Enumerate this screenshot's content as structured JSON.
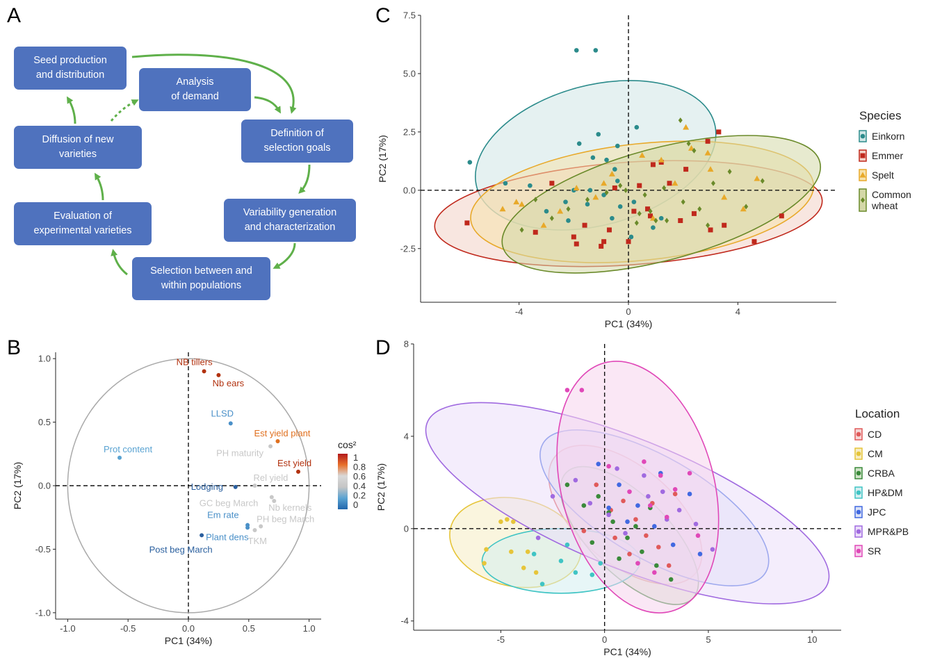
{
  "panels": {
    "A": "A",
    "B": "B",
    "C": "C",
    "D": "D"
  },
  "flowchart": {
    "boxes": [
      {
        "id": "seed",
        "label": "Seed production\nand distribution"
      },
      {
        "id": "demand",
        "label": "Analysis\nof demand"
      },
      {
        "id": "goals",
        "label": "Definition of\nselection goals"
      },
      {
        "id": "variability",
        "label": "Variability generation\nand characterization"
      },
      {
        "id": "selection",
        "label": "Selection between and\nwithin populations"
      },
      {
        "id": "evaluation",
        "label": "Evaluation of\nexperimental varieties"
      },
      {
        "id": "diffusion",
        "label": "Diffusion of new\nvarieties"
      }
    ],
    "arrow_color": "#5fb04a"
  },
  "chart_data": [
    {
      "panel": "B",
      "type": "scatter",
      "xlabel": "PC1 (34%)",
      "ylabel": "PC2 (17%)",
      "xlim": [
        -1.1,
        1.1
      ],
      "ylim": [
        -1.05,
        1.05
      ],
      "xticks": [
        "-1.0",
        "-0.5",
        "0.0",
        "0.5",
        "1.0"
      ],
      "yticks": [
        "-1.0",
        "-0.5",
        "0.0",
        "0.5",
        "1.0"
      ],
      "legend_title": "cos²",
      "legend_labels": [
        "1",
        "0.8",
        "0.6",
        "0.4",
        "0.2",
        "0"
      ],
      "legend_colors": [
        "#b2181b",
        "#e8702a",
        "#d9d9d9",
        "#c5c5c5",
        "#5aa3d2",
        "#2166ac"
      ],
      "variables": [
        {
          "label": "NB tillers",
          "x": 0.13,
          "y": 0.9,
          "color": "#b2320f"
        },
        {
          "label": "Nb ears",
          "x": 0.25,
          "y": 0.87,
          "color": "#b2320f"
        },
        {
          "label": "LLSD",
          "x": 0.35,
          "y": 0.49,
          "color": "#4a90c8"
        },
        {
          "label": "Est yield plant",
          "x": 0.74,
          "y": 0.35,
          "color": "#e0701f"
        },
        {
          "label": "PH maturity",
          "x": 0.68,
          "y": 0.31,
          "color": "#c8c8c8"
        },
        {
          "label": "Est yield",
          "x": 0.91,
          "y": 0.11,
          "color": "#b2320f"
        },
        {
          "label": "Prot content",
          "x": -0.57,
          "y": 0.22,
          "color": "#5aa3d2"
        },
        {
          "label": "Rel yield",
          "x": 0.55,
          "y": 0.0,
          "color": "#c8c8c8"
        },
        {
          "label": "Lodging",
          "x": 0.39,
          "y": -0.01,
          "color": "#2a5f9e"
        },
        {
          "label": "Nb kernels",
          "x": 0.71,
          "y": -0.12,
          "color": "#c8c8c8"
        },
        {
          "label": "GC beg March",
          "x": 0.69,
          "y": -0.09,
          "color": "#c8c8c8"
        },
        {
          "label": "Em rate",
          "x": 0.49,
          "y": -0.31,
          "color": "#4a90c8"
        },
        {
          "label": "PH beg March",
          "x": 0.6,
          "y": -0.32,
          "color": "#c8c8c8"
        },
        {
          "label": "Plant dens",
          "x": 0.49,
          "y": -0.33,
          "color": "#4a90c8"
        },
        {
          "label": "TKM",
          "x": 0.55,
          "y": -0.35,
          "color": "#c8c8c8"
        },
        {
          "label": "Post beg March",
          "x": 0.11,
          "y": -0.39,
          "color": "#2a5f9e"
        }
      ]
    },
    {
      "panel": "C",
      "type": "scatter",
      "xlabel": "PC1 (34%)",
      "ylabel": "PC2 (17%)",
      "xlim": [
        -7.6,
        7.6
      ],
      "ylim": [
        -4.8,
        7.5
      ],
      "xticks": [
        "-4",
        "0",
        "4"
      ],
      "yticks": [
        "-2.5",
        "0.0",
        "2.5",
        "5.0",
        "7.5"
      ],
      "legend_title": "Species",
      "series": [
        {
          "name": "Einkorn",
          "color": "#2b8b8b",
          "marker": "circle",
          "ellipse": {
            "cx": -1.2,
            "cy": 1.5,
            "rx": 4.5,
            "ry": 3.0,
            "angle": 15,
            "fill": "#cfe6e6"
          },
          "x": [
            -1.9,
            -1.2,
            -5.8,
            -3.6,
            -4.5,
            -2.3,
            -1.8,
            -1.3,
            -1.1,
            -0.8,
            -0.5,
            -0.4,
            -1.4,
            -0.9,
            -2.0,
            -1.5,
            -0.3,
            0.2,
            -0.6,
            -3.0,
            -2.2,
            0.1,
            0.9,
            1.2,
            -0.4,
            0.3
          ],
          "y": [
            6.0,
            6.0,
            1.2,
            0.2,
            0.3,
            -0.5,
            2.0,
            1.4,
            2.4,
            1.3,
            0.9,
            0.4,
            0.0,
            -0.2,
            0.0,
            -0.6,
            -0.7,
            -0.5,
            -1.2,
            -0.9,
            -1.3,
            -2.0,
            -1.6,
            -1.2,
            1.9,
            2.7
          ]
        },
        {
          "name": "Emmer",
          "color": "#c0281c",
          "marker": "square",
          "ellipse": {
            "cx": 0.0,
            "cy": -1.0,
            "rx": 7.1,
            "ry": 2.2,
            "angle": 4,
            "fill": "#f3d2c7"
          },
          "x": [
            -5.9,
            -2.8,
            -3.4,
            -1.6,
            -1.9,
            -0.9,
            -0.7,
            -0.5,
            0.2,
            0.7,
            0.9,
            1.2,
            1.5,
            0.4,
            1.9,
            2.4,
            2.9,
            3.3,
            -2.0,
            -1.0,
            0.0,
            2.1,
            3.5,
            4.6,
            5.6,
            3.0,
            0.8
          ],
          "y": [
            -1.4,
            0.3,
            -1.8,
            -1.5,
            -2.3,
            -2.2,
            -1.7,
            0.1,
            -0.9,
            -0.8,
            1.1,
            1.2,
            0.3,
            0.2,
            -1.3,
            -1.0,
            2.1,
            2.5,
            -2.0,
            -2.4,
            -2.2,
            0.9,
            -1.5,
            -2.2,
            -1.1,
            -1.7,
            -1.1
          ]
        },
        {
          "name": "Spelt",
          "color": "#e8a92a",
          "marker": "triangle",
          "ellipse": {
            "cx": 0.5,
            "cy": -0.5,
            "rx": 6.3,
            "ry": 2.5,
            "angle": 6,
            "fill": "#f6e2ac"
          },
          "x": [
            -4.6,
            -3.9,
            -3.1,
            -2.5,
            -1.9,
            -1.2,
            -0.6,
            0.5,
            1.2,
            1.7,
            2.3,
            2.9,
            3.5,
            4.2,
            4.7,
            -4.1,
            -0.9,
            0.9,
            2.1,
            3.0
          ],
          "y": [
            -0.8,
            -0.6,
            -1.5,
            -0.9,
            0.1,
            -0.3,
            0.7,
            1.5,
            1.3,
            0.3,
            1.8,
            1.6,
            -0.3,
            -0.8,
            0.5,
            -0.5,
            0.3,
            -1.2,
            2.7,
            0.9
          ]
        },
        {
          "name": "Common\nwheat",
          "color": "#6a8a2a",
          "marker": "diamond",
          "ellipse": {
            "cx": 1.2,
            "cy": -0.6,
            "rx": 6.0,
            "ry": 2.4,
            "angle": 15,
            "fill": "#d4d8a8"
          },
          "x": [
            -3.9,
            -3.4,
            -2.8,
            -2.2,
            -1.5,
            -0.8,
            -0.3,
            0.3,
            0.8,
            1.4,
            2.0,
            2.6,
            3.1,
            3.7,
            4.3,
            4.9,
            0.6,
            1.9,
            2.4,
            1.3,
            2.9,
            -0.1,
            0.4,
            2.2,
            1.0
          ],
          "y": [
            -1.7,
            -0.4,
            -1.2,
            -0.8,
            -0.4,
            -0.1,
            0.2,
            -1.4,
            -0.9,
            -1.3,
            -0.5,
            -0.8,
            0.3,
            0.8,
            -0.7,
            0.4,
            -0.2,
            3.0,
            1.7,
            0.1,
            -1.5,
            0.0,
            -1.0,
            2.0,
            -1.3
          ]
        }
      ]
    },
    {
      "panel": "D",
      "type": "scatter",
      "xlabel": "PC1 (34%)",
      "ylabel": "PC2 (17%)",
      "xlim": [
        -9.2,
        11.4
      ],
      "ylim": [
        -4.4,
        8.0
      ],
      "xticks": [
        "-5",
        "0",
        "5",
        "10"
      ],
      "yticks": [
        "-4",
        "0",
        "4",
        "8"
      ],
      "legend_title": "Location",
      "series": [
        {
          "name": "CD",
          "color": "#e05a5a",
          "ellipse": {
            "cx": 1.0,
            "cy": 0.6,
            "rx": 4.4,
            "ry": 2.1,
            "angle": -40,
            "fill": "#f5d6d6"
          },
          "x": [
            0.3,
            0.9,
            1.5,
            2.0,
            2.6,
            3.1,
            -0.4,
            0.5,
            1.2,
            2.3,
            3.4,
            -1.0
          ],
          "y": [
            0.8,
            1.2,
            0.4,
            -0.3,
            -0.8,
            -1.6,
            1.9,
            -0.4,
            -1.1,
            1.1,
            1.5,
            -0.1
          ]
        },
        {
          "name": "CM",
          "color": "#e6c53a",
          "ellipse": {
            "cx": -4.3,
            "cy": -0.6,
            "rx": 3.2,
            "ry": 1.9,
            "angle": -12,
            "fill": "#f6ecc2"
          },
          "x": [
            -5.8,
            -5.7,
            -4.7,
            -4.4,
            -3.9,
            -3.7,
            -3.3,
            -4.5,
            -5.0
          ],
          "y": [
            -1.5,
            -0.9,
            0.4,
            0.3,
            -1.7,
            -1.0,
            -1.9,
            -1.0,
            0.3
          ]
        },
        {
          "name": "CRBA",
          "color": "#3a8a3a",
          "ellipse": {
            "cx": 1.2,
            "cy": -0.3,
            "rx": 4.3,
            "ry": 1.7,
            "angle": -45,
            "fill": "#cfe3c8"
          },
          "x": [
            -1.8,
            -1.0,
            -0.3,
            0.4,
            1.1,
            1.8,
            2.5,
            3.2,
            -0.6,
            0.7,
            1.5,
            2.2,
            0.2
          ],
          "y": [
            1.9,
            1.0,
            1.4,
            0.3,
            -0.4,
            -1.0,
            -1.6,
            -2.2,
            -0.6,
            -1.3,
            0.1,
            0.9,
            0.7
          ]
        },
        {
          "name": "HP&DM",
          "color": "#3fc4c4",
          "ellipse": {
            "cx": -2.1,
            "cy": -1.4,
            "rx": 3.8,
            "ry": 1.4,
            "angle": 0,
            "fill": "#d4eef0"
          },
          "x": [
            -3.0,
            -2.1,
            -1.4,
            -0.6,
            -0.2,
            -3.4,
            -1.8
          ],
          "y": [
            -2.4,
            -1.4,
            -1.9,
            -2.0,
            -1.5,
            -1.1,
            -0.7
          ]
        },
        {
          "name": "JPC",
          "color": "#4169e1",
          "ellipse": {
            "cx": 2.4,
            "cy": 0.9,
            "rx": 6.2,
            "ry": 2.2,
            "angle": -30,
            "fill": "#dbe2f6"
          },
          "x": [
            -0.3,
            0.7,
            1.6,
            2.4,
            3.3,
            4.1,
            4.6,
            1.1,
            2.7,
            0.2
          ],
          "y": [
            2.8,
            1.9,
            1.0,
            0.1,
            -0.7,
            1.5,
            -1.1,
            0.3,
            2.4,
            0.9
          ]
        },
        {
          "name": "MPR&PB",
          "color": "#a06ae0",
          "ellipse": {
            "cx": 1.1,
            "cy": 1.1,
            "rx": 10.4,
            "ry": 2.8,
            "angle": -22,
            "fill": "#ebdef9"
          },
          "x": [
            -2.5,
            -1.4,
            -0.7,
            0.2,
            1.0,
            1.9,
            2.8,
            3.6,
            4.4,
            5.2,
            -3.2,
            0.6,
            2.1,
            3.0
          ],
          "y": [
            1.4,
            2.1,
            1.1,
            0.6,
            -0.2,
            2.3,
            1.6,
            0.8,
            0.2,
            -0.9,
            -0.4,
            2.6,
            1.4,
            0.4
          ]
        },
        {
          "name": "SR",
          "color": "#e048b8",
          "ellipse": {
            "cx": 1.6,
            "cy": 1.8,
            "rx": 6.2,
            "ry": 3.3,
            "angle": -75,
            "fill": "#f5d3ed"
          },
          "x": [
            -1.8,
            -1.1,
            0.2,
            1.2,
            1.9,
            2.7,
            3.4,
            4.1,
            2.2,
            3.0,
            4.5,
            1.6,
            2.4
          ],
          "y": [
            6.0,
            6.0,
            2.7,
            1.6,
            2.9,
            2.3,
            1.7,
            2.4,
            1.0,
            0.5,
            -0.3,
            -1.5,
            -1.9
          ]
        }
      ]
    }
  ]
}
